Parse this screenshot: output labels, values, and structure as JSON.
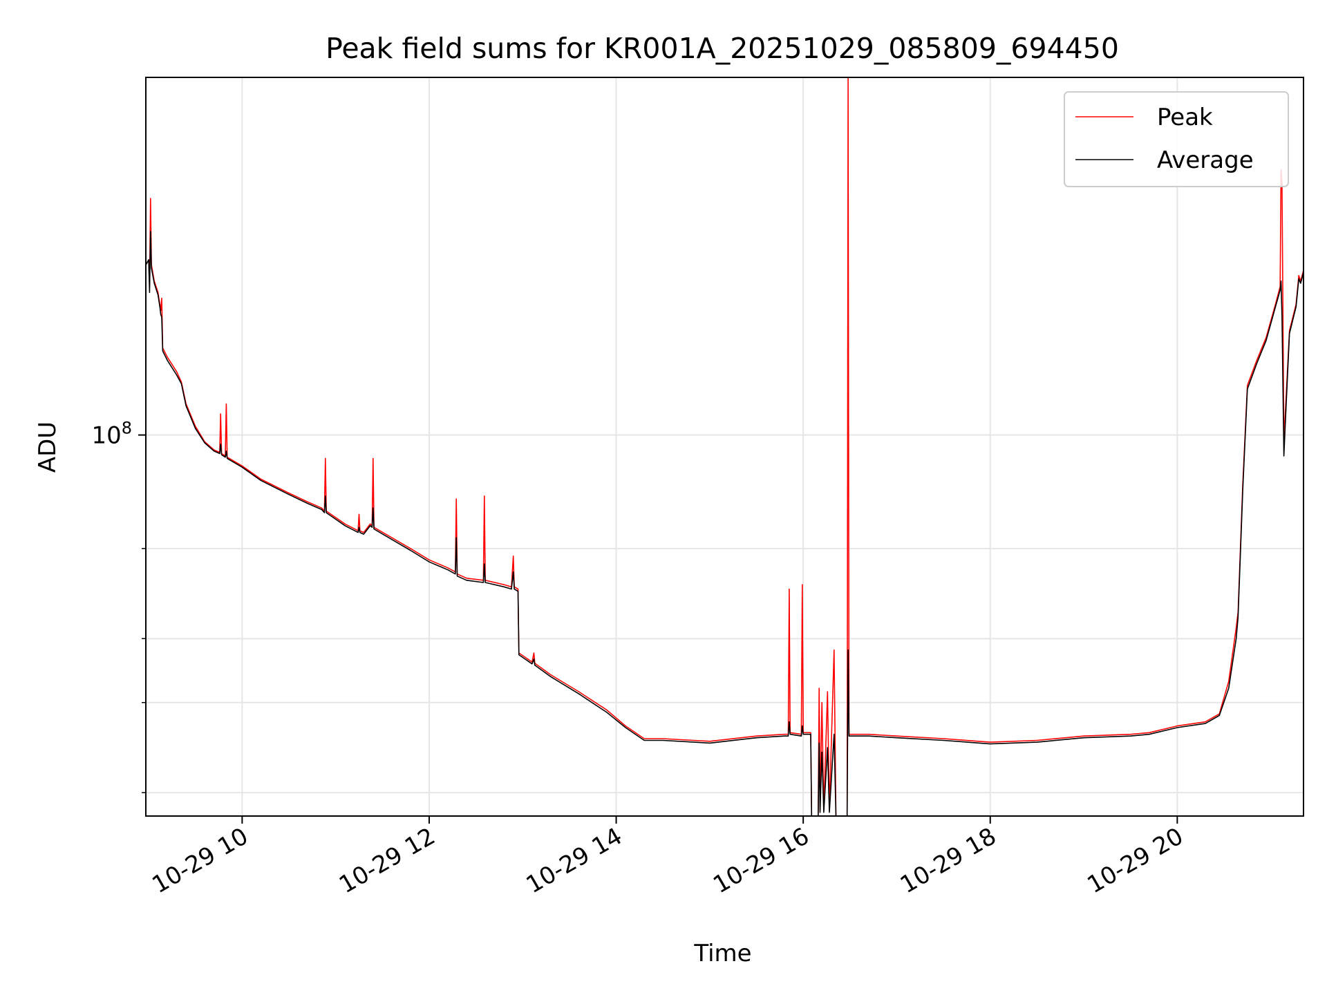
{
  "chart_data": {
    "type": "line",
    "title": "Peak field sums for KR001A_20251029_085809_694450",
    "xlabel": "Time",
    "ylabel": "ADU",
    "xlim": [
      8.97,
      21.35
    ],
    "ylim": [
      18000000,
      500000000
    ],
    "yscale": "log",
    "grid": true,
    "legend_position": "top-right",
    "x_ticks": [
      {
        "value": 10,
        "label": "10-29 10"
      },
      {
        "value": 12,
        "label": "10-29 12"
      },
      {
        "value": 14,
        "label": "10-29 14"
      },
      {
        "value": 16,
        "label": "10-29 16"
      },
      {
        "value": 18,
        "label": "10-29 18"
      },
      {
        "value": 20,
        "label": "10-29 20"
      }
    ],
    "y_major_ticks": [
      {
        "value": 100000000,
        "base": "10",
        "exp": "8"
      }
    ],
    "y_minor_ticks": [
      20000000,
      30000000,
      40000000,
      60000000
    ],
    "series": [
      {
        "name": "Peak",
        "color": "#ff0000",
        "points": [
          [
            8.97,
            215000000
          ],
          [
            9.0,
            220000000
          ],
          [
            9.01,
            196000000
          ],
          [
            9.02,
            290000000
          ],
          [
            9.03,
            215000000
          ],
          [
            9.06,
            200000000
          ],
          [
            9.1,
            190000000
          ],
          [
            9.12,
            180000000
          ],
          [
            9.13,
            175000000
          ],
          [
            9.14,
            185000000
          ],
          [
            9.15,
            148000000
          ],
          [
            9.2,
            142000000
          ],
          [
            9.3,
            133000000
          ],
          [
            9.35,
            127000000
          ],
          [
            9.4,
            115000000
          ],
          [
            9.5,
            104000000
          ],
          [
            9.6,
            97000000
          ],
          [
            9.7,
            93500000
          ],
          [
            9.76,
            92500000
          ],
          [
            9.77,
            110000000
          ],
          [
            9.78,
            92000000
          ],
          [
            9.82,
            91000000
          ],
          [
            9.83,
            115000000
          ],
          [
            9.84,
            90500000
          ],
          [
            10.0,
            87000000
          ],
          [
            10.2,
            82000000
          ],
          [
            10.5,
            77000000
          ],
          [
            10.7,
            74000000
          ],
          [
            10.85,
            72000000
          ],
          [
            10.88,
            71000000
          ],
          [
            10.89,
            90000000
          ],
          [
            10.9,
            71000000
          ],
          [
            11.1,
            67000000
          ],
          [
            11.24,
            65000000
          ],
          [
            11.25,
            70000000
          ],
          [
            11.26,
            65000000
          ],
          [
            11.3,
            64500000
          ],
          [
            11.37,
            67000000
          ],
          [
            11.39,
            66500000
          ],
          [
            11.4,
            90000000
          ],
          [
            11.41,
            66000000
          ],
          [
            11.6,
            63000000
          ],
          [
            11.8,
            60000000
          ],
          [
            12.0,
            57000000
          ],
          [
            12.2,
            55000000
          ],
          [
            12.28,
            54000000
          ],
          [
            12.29,
            75000000
          ],
          [
            12.3,
            53500000
          ],
          [
            12.4,
            52500000
          ],
          [
            12.58,
            52000000
          ],
          [
            12.59,
            76000000
          ],
          [
            12.6,
            52000000
          ],
          [
            12.8,
            51000000
          ],
          [
            12.88,
            50500000
          ],
          [
            12.9,
            58000000
          ],
          [
            12.91,
            50500000
          ],
          [
            12.95,
            50000000
          ],
          [
            12.96,
            37500000
          ],
          [
            13.1,
            36000000
          ],
          [
            13.12,
            37500000
          ],
          [
            13.13,
            35800000
          ],
          [
            13.3,
            34000000
          ],
          [
            13.6,
            31500000
          ],
          [
            13.9,
            29000000
          ],
          [
            14.1,
            27000000
          ],
          [
            14.3,
            25500000
          ],
          [
            14.5,
            25500000
          ],
          [
            15.0,
            25200000
          ],
          [
            15.5,
            25800000
          ],
          [
            15.8,
            26000000
          ],
          [
            15.84,
            26000000
          ],
          [
            15.85,
            50000000
          ],
          [
            15.86,
            26200000
          ],
          [
            15.98,
            26000000
          ],
          [
            15.99,
            51000000
          ],
          [
            16.0,
            26200000
          ],
          [
            16.08,
            26200000
          ],
          [
            16.09,
            18000000
          ],
          [
            16.16,
            18000000
          ],
          [
            16.17,
            32000000
          ],
          [
            16.18,
            18500000
          ],
          [
            16.2,
            30000000
          ],
          [
            16.22,
            18500000
          ],
          [
            16.26,
            31500000
          ],
          [
            16.28,
            18500000
          ],
          [
            16.33,
            38000000
          ],
          [
            16.35,
            18000000
          ],
          [
            16.47,
            18000000
          ],
          [
            16.48,
            500000000
          ],
          [
            16.49,
            26000000
          ],
          [
            16.7,
            26000000
          ],
          [
            17.0,
            25800000
          ],
          [
            17.5,
            25500000
          ],
          [
            18.0,
            25100000
          ],
          [
            18.5,
            25300000
          ],
          [
            19.0,
            25800000
          ],
          [
            19.5,
            26000000
          ],
          [
            19.7,
            26200000
          ],
          [
            20.0,
            27000000
          ],
          [
            20.3,
            27500000
          ],
          [
            20.45,
            28500000
          ],
          [
            20.55,
            33000000
          ],
          [
            20.63,
            42000000
          ],
          [
            20.65,
            45000000
          ],
          [
            20.7,
            80000000
          ],
          [
            20.75,
            125000000
          ],
          [
            20.85,
            140000000
          ],
          [
            20.95,
            155000000
          ],
          [
            21.05,
            180000000
          ],
          [
            21.1,
            195000000
          ],
          [
            21.11,
            330000000
          ],
          [
            21.12,
            310000000
          ],
          [
            21.14,
            97000000
          ],
          [
            21.16,
            115000000
          ],
          [
            21.2,
            160000000
          ],
          [
            21.27,
            180000000
          ],
          [
            21.3,
            205000000
          ],
          [
            21.32,
            200000000
          ],
          [
            21.35,
            210000000
          ]
        ]
      },
      {
        "name": "Average",
        "color": "#000000",
        "points": [
          [
            8.97,
            215000000
          ],
          [
            9.0,
            220000000
          ],
          [
            9.01,
            190000000
          ],
          [
            9.02,
            250000000
          ],
          [
            9.03,
            212000000
          ],
          [
            9.06,
            198000000
          ],
          [
            9.1,
            188000000
          ],
          [
            9.12,
            178000000
          ],
          [
            9.13,
            172000000
          ],
          [
            9.14,
            170000000
          ],
          [
            9.15,
            146000000
          ],
          [
            9.2,
            140000000
          ],
          [
            9.3,
            131000000
          ],
          [
            9.35,
            126000000
          ],
          [
            9.4,
            114000000
          ],
          [
            9.5,
            103000000
          ],
          [
            9.6,
            96500000
          ],
          [
            9.7,
            93000000
          ],
          [
            9.76,
            92000000
          ],
          [
            9.77,
            96000000
          ],
          [
            9.78,
            91500000
          ],
          [
            9.82,
            90500000
          ],
          [
            9.83,
            93000000
          ],
          [
            9.84,
            90000000
          ],
          [
            10.0,
            86500000
          ],
          [
            10.2,
            81500000
          ],
          [
            10.5,
            76500000
          ],
          [
            10.7,
            73500000
          ],
          [
            10.85,
            71500000
          ],
          [
            10.88,
            70500000
          ],
          [
            10.89,
            76000000
          ],
          [
            10.9,
            70500000
          ],
          [
            11.1,
            66500000
          ],
          [
            11.24,
            64500000
          ],
          [
            11.25,
            66000000
          ],
          [
            11.26,
            64500000
          ],
          [
            11.3,
            64000000
          ],
          [
            11.37,
            66500000
          ],
          [
            11.39,
            66000000
          ],
          [
            11.4,
            72000000
          ],
          [
            11.41,
            65500000
          ],
          [
            11.6,
            62500000
          ],
          [
            11.8,
            59500000
          ],
          [
            12.0,
            56500000
          ],
          [
            12.2,
            54500000
          ],
          [
            12.28,
            53500000
          ],
          [
            12.29,
            63000000
          ],
          [
            12.3,
            53000000
          ],
          [
            12.4,
            52000000
          ],
          [
            12.58,
            51500000
          ],
          [
            12.59,
            56000000
          ],
          [
            12.6,
            51500000
          ],
          [
            12.8,
            50500000
          ],
          [
            12.88,
            50000000
          ],
          [
            12.9,
            54000000
          ],
          [
            12.91,
            50000000
          ],
          [
            12.95,
            49500000
          ],
          [
            12.96,
            37200000
          ],
          [
            13.1,
            35700000
          ],
          [
            13.12,
            36500000
          ],
          [
            13.13,
            35500000
          ],
          [
            13.3,
            33700000
          ],
          [
            13.6,
            31200000
          ],
          [
            13.9,
            28700000
          ],
          [
            14.1,
            26800000
          ],
          [
            14.3,
            25300000
          ],
          [
            14.5,
            25300000
          ],
          [
            15.0,
            25000000
          ],
          [
            15.5,
            25600000
          ],
          [
            15.8,
            25800000
          ],
          [
            15.84,
            25800000
          ],
          [
            15.85,
            27500000
          ],
          [
            15.86,
            26000000
          ],
          [
            15.98,
            25800000
          ],
          [
            15.99,
            27000000
          ],
          [
            16.0,
            26000000
          ],
          [
            16.08,
            26000000
          ],
          [
            16.09,
            18000000
          ],
          [
            16.16,
            18000000
          ],
          [
            16.17,
            25000000
          ],
          [
            16.18,
            18300000
          ],
          [
            16.2,
            24000000
          ],
          [
            16.22,
            18300000
          ],
          [
            16.26,
            24500000
          ],
          [
            16.28,
            18300000
          ],
          [
            16.33,
            26000000
          ],
          [
            16.35,
            18000000
          ],
          [
            16.47,
            18000000
          ],
          [
            16.48,
            38000000
          ],
          [
            16.49,
            25800000
          ],
          [
            16.7,
            25800000
          ],
          [
            17.0,
            25600000
          ],
          [
            17.5,
            25300000
          ],
          [
            18.0,
            24900000
          ],
          [
            18.5,
            25100000
          ],
          [
            19.0,
            25600000
          ],
          [
            19.5,
            25800000
          ],
          [
            19.7,
            26000000
          ],
          [
            20.0,
            26800000
          ],
          [
            20.3,
            27300000
          ],
          [
            20.45,
            28300000
          ],
          [
            20.55,
            32000000
          ],
          [
            20.63,
            40000000
          ],
          [
            20.65,
            44000000
          ],
          [
            20.7,
            78000000
          ],
          [
            20.75,
            123000000
          ],
          [
            20.85,
            138000000
          ],
          [
            20.95,
            153000000
          ],
          [
            21.05,
            178000000
          ],
          [
            21.1,
            192000000
          ],
          [
            21.11,
            200000000
          ],
          [
            21.12,
            170000000
          ],
          [
            21.14,
            91000000
          ],
          [
            21.16,
            110000000
          ],
          [
            21.2,
            158000000
          ],
          [
            21.27,
            178000000
          ],
          [
            21.3,
            202000000
          ],
          [
            21.32,
            198000000
          ],
          [
            21.35,
            208000000
          ]
        ]
      }
    ]
  }
}
